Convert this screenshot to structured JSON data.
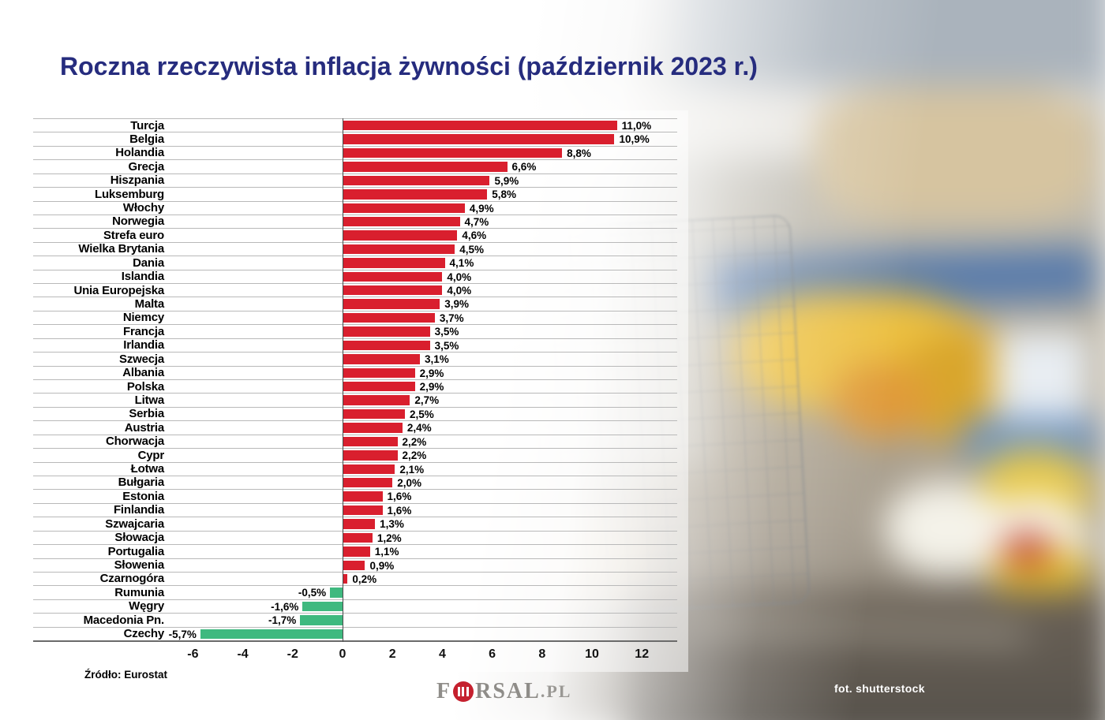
{
  "source": "Źródło: Eurostat",
  "photo_credit": "fot. shutterstock",
  "logo": {
    "f": "F",
    "rsal": "RSAL",
    "pl": ".PL"
  },
  "colors": {
    "title": "#262c7e",
    "bar_positive": "#d91f2e",
    "bar_negative": "#3fb97f",
    "gridline": "#b9b9b9"
  },
  "chart_data": {
    "type": "bar",
    "orientation": "horizontal",
    "title": "Roczna rzeczywista inflacja żywności (październik 2023 r.)",
    "xlabel": "",
    "ylabel": "",
    "xlim": [
      -6,
      12
    ],
    "x_ticks": [
      -6,
      -4,
      -2,
      0,
      2,
      4,
      6,
      8,
      10,
      12
    ],
    "grid": "horizontal",
    "legend": "none",
    "categories": [
      "Turcja",
      "Belgia",
      "Holandia",
      "Grecja",
      "Hiszpania",
      "Luksemburg",
      "Włochy",
      "Norwegia",
      "Strefa euro",
      "Wielka Brytania",
      "Dania",
      "Islandia",
      "Unia Europejska",
      "Malta",
      "Niemcy",
      "Francja",
      "Irlandia",
      "Szwecja",
      "Albania",
      "Polska",
      "Litwa",
      "Serbia",
      "Austria",
      "Chorwacja",
      "Cypr",
      "Łotwa",
      "Bułgaria",
      "Estonia",
      "Finlandia",
      "Szwajcaria",
      "Słowacja",
      "Portugalia",
      "Słowenia",
      "Czarnogóra",
      "Rumunia",
      "Węgry",
      "Macedonia Pn.",
      "Czechy"
    ],
    "values": [
      11.0,
      10.9,
      8.8,
      6.6,
      5.9,
      5.8,
      4.9,
      4.7,
      4.6,
      4.5,
      4.1,
      4.0,
      4.0,
      3.9,
      3.7,
      3.5,
      3.5,
      3.1,
      2.9,
      2.9,
      2.7,
      2.5,
      2.4,
      2.2,
      2.2,
      2.1,
      2.0,
      1.6,
      1.6,
      1.3,
      1.2,
      1.1,
      0.9,
      0.2,
      -0.5,
      -1.6,
      -1.7,
      -5.7
    ],
    "value_labels": [
      "11,0%",
      "10,9%",
      "8,8%",
      "6,6%",
      "5,9%",
      "5,8%",
      "4,9%",
      "4,7%",
      "4,6%",
      "4,5%",
      "4,1%",
      "4,0%",
      "4,0%",
      "3,9%",
      "3,7%",
      "3,5%",
      "3,5%",
      "3,1%",
      "2,9%",
      "2,9%",
      "2,7%",
      "2,5%",
      "2,4%",
      "2,2%",
      "2,2%",
      "2,1%",
      "2,0%",
      "1,6%",
      "1,6%",
      "1,3%",
      "1,2%",
      "1,1%",
      "0,9%",
      "0,2%",
      "-0,5%",
      "-1,6%",
      "-1,7%",
      "-5,7%"
    ],
    "bar_color_positive": "#d91f2e",
    "bar_color_negative": "#3fb97f"
  }
}
